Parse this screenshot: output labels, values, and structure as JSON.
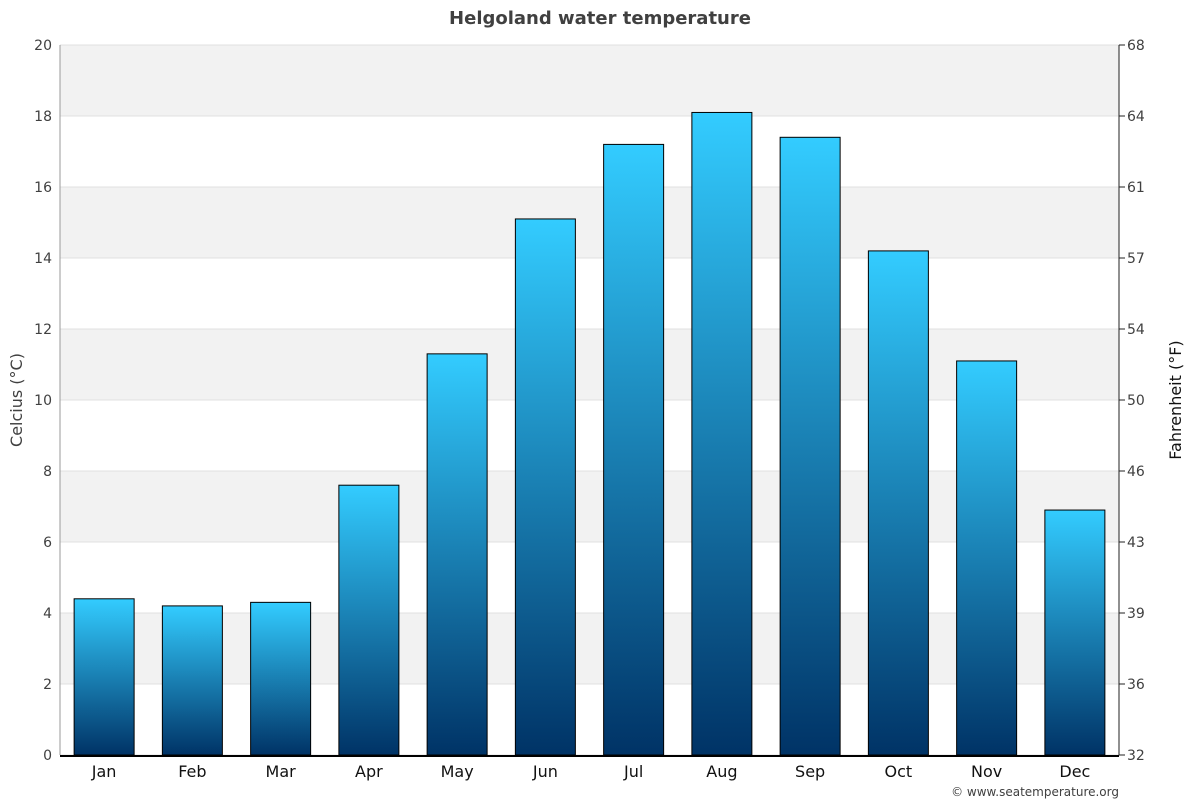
{
  "chart_data": {
    "type": "bar",
    "title": "Helgoland water temperature",
    "ylabel": "Celcius (°C)",
    "ylabel_right": "Fahrenheit (°F)",
    "categories": [
      "Jan",
      "Feb",
      "Mar",
      "Apr",
      "May",
      "Jun",
      "Jul",
      "Aug",
      "Sep",
      "Oct",
      "Nov",
      "Dec"
    ],
    "values": [
      4.4,
      4.2,
      4.3,
      7.6,
      11.3,
      15.1,
      17.2,
      18.1,
      17.4,
      14.2,
      11.1,
      6.9
    ],
    "ylim": [
      0,
      20
    ],
    "yticks": [
      0,
      2,
      4,
      6,
      8,
      10,
      12,
      14,
      16,
      18,
      20
    ],
    "yticks_right": [
      "32",
      "36",
      "39",
      "43",
      "46",
      "50",
      "54",
      "57",
      "61",
      "64",
      "68"
    ],
    "grid": true,
    "legend": "none",
    "colors": {
      "bar_top": "#33ccff",
      "bar_bottom": "#003366",
      "band": "#f2f2f2"
    }
  },
  "credit": "© www.seatemperature.org"
}
